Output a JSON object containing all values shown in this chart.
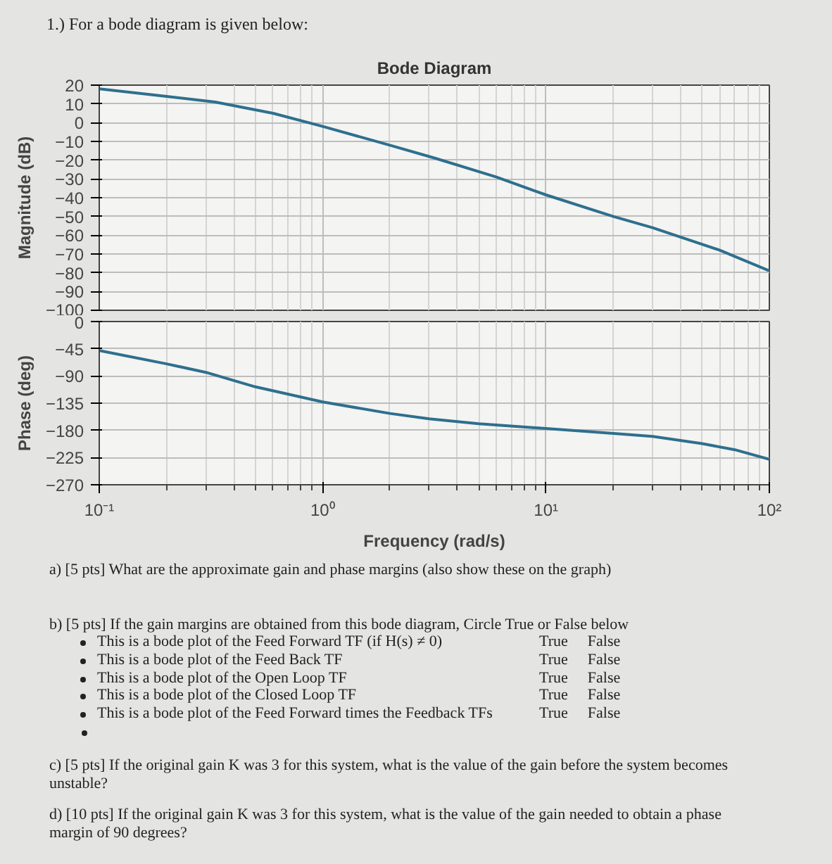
{
  "chart_data": [
    {
      "type": "line",
      "title": "Bode Diagram",
      "ylabel": "Magnitude (dB)",
      "annotations": [
        "1.) For a bode diagram is given below:"
      ],
      "x": [
        0.1,
        0.2,
        0.33,
        0.6,
        1,
        2,
        3.2,
        6,
        10,
        20,
        30,
        60,
        100
      ],
      "series": [
        {
          "color": "#2e6f8e",
          "values": [
            18,
            14,
            11,
            5,
            -2,
            -12,
            -19,
            -29,
            -38.5,
            -50,
            -56,
            -68,
            -79
          ]
        }
      ],
      "xlim": [
        0.1,
        100
      ],
      "xticks": [
        0.1,
        1,
        10,
        100
      ],
      "log": "x",
      "ylim": [
        -100,
        20
      ],
      "yticks": [
        -100,
        -90,
        -80,
        -70,
        -60,
        -50,
        -40,
        -30,
        -20,
        -10,
        0,
        10,
        20
      ],
      "grid": true,
      "tick_labels": "y",
      "line_style": "solid",
      "marker": "none"
    },
    {
      "type": "line",
      "xlabel": "Frequency (rad/s)",
      "ylabel": "Phase (deg)",
      "annotations": [
        "a) [5 pts] What are the approximate gain and phase margins (also show these on the graph)",
        "b) [5 pts] If the gain margins are obtained from this bode diagram, Circle True or False below",
        "This is a bode plot of the Feed Forward TF (if H(s) ≠ 0)",
        "True",
        "False",
        "This is a bode plot of the Feed Back TF",
        "True",
        "False",
        "This is a bode plot of the Open Loop TF",
        "True",
        "False",
        "This is a bode plot of the Closed Loop TF",
        "True",
        "False",
        "This is a bode plot of the Feed Forward times the Feedback TFs",
        "True",
        "False",
        "c) [5 pts] If the original gain K was 3 for this system, what is the value of the gain before the system becomes unstable?",
        "d) [10 pts] If the original gain K was 3 for this system, what is the value of the gain needed to obtain a phase margin of 90 degrees?"
      ],
      "x": [
        0.1,
        0.2,
        0.3,
        0.5,
        1,
        2,
        3,
        5,
        10,
        20,
        30,
        50,
        70,
        100
      ],
      "series": [
        {
          "color": "#2e6f8e",
          "values": [
            -48,
            -70,
            -84,
            -108,
            -133,
            -152,
            -161,
            -169,
            -177,
            -185,
            -190,
            -202,
            -212,
            -228
          ]
        }
      ],
      "xlim": [
        0.1,
        100
      ],
      "xticks": [
        {
          "value": 0.1,
          "label": "10⁻¹"
        },
        {
          "value": 1,
          "label": "10⁰"
        },
        {
          "value": 10,
          "label": "10¹"
        },
        {
          "value": 100,
          "label": "10²"
        }
      ],
      "log": "x",
      "ylim": [
        -270,
        0
      ],
      "yticks": [
        -270,
        -225,
        -180,
        -135,
        -90,
        -45,
        0
      ],
      "grid": true,
      "line_style": "solid",
      "marker": "none"
    }
  ]
}
